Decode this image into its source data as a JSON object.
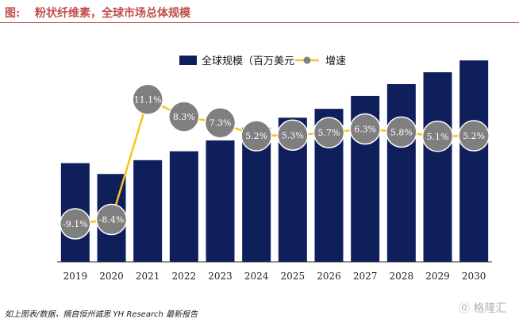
{
  "header": {
    "figure_label": "图:",
    "title": "粉状纤维素，全球市场总体规模"
  },
  "footer": {
    "source": "如上图表/数据，摘自恒州诚思 YH Research 最新报告"
  },
  "watermark": {
    "text": "格隆汇",
    "icon": "gelonghui-logo-icon"
  },
  "chart_data": {
    "type": "bar",
    "categories": [
      "2019",
      "2020",
      "2021",
      "2022",
      "2023",
      "2024",
      "2025",
      "2026",
      "2027",
      "2028",
      "2029",
      "2030"
    ],
    "series": [
      {
        "name": "全球规模（百万美元",
        "type": "bar",
        "values": [
          100,
          89,
          103,
          112,
          123,
          136,
          146,
          155,
          168,
          180,
          192,
          204
        ],
        "color": "#0f1f5c"
      },
      {
        "name": "增速",
        "type": "line",
        "values": [
          -9.1,
          -8.4,
          11.1,
          8.3,
          7.3,
          5.2,
          5.3,
          5.7,
          6.3,
          5.8,
          5.1,
          5.2
        ],
        "labels": [
          "-9.1%",
          "-8.4%",
          "11.1%",
          "8.3%",
          "7.3%",
          "5.2%",
          "5.3%",
          "5.7%",
          "6.3%",
          "5.8%",
          "5.1%",
          "5.2%"
        ],
        "line_color": "#f5c518",
        "marker_color": "#7f7f7f"
      }
    ],
    "legend_position": "top-right",
    "grid": false,
    "bar_ylim": [
      0,
      225
    ],
    "line_ylim": [
      -14,
      15
    ]
  }
}
